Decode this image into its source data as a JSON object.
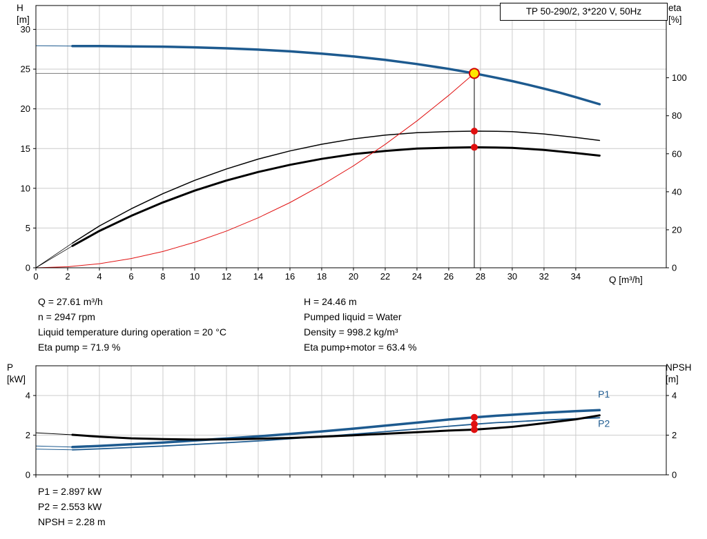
{
  "title_box": {
    "label": "TP 50-290/2, 3*220 V, 50Hz"
  },
  "colors": {
    "curve_blue": "#1d5a8f",
    "curve_black": "#000000",
    "curve_red": "#e01010",
    "duty_point_fill": "#ffe600",
    "duty_point_stroke": "#d00000",
    "grid": "#cccccc",
    "frame": "#000000",
    "ref_line_h": "#787878",
    "ref_line_v": "#000000",
    "label_blue": "#1d5a8f"
  },
  "info_top": {
    "col1": [
      "Q = 27.61 m³/h",
      "n = 2947 rpm",
      "Liquid temperature during operation = 20 °C",
      "Eta pump = 71.9 %"
    ],
    "col2": [
      "H = 24.46 m",
      "Pumped liquid = Water",
      "Density = 998.2 kg/m³",
      "Eta pump+motor = 63.4 %"
    ]
  },
  "info_bottom": [
    "P1 = 2.897 kW",
    "P2 = 2.553 kW",
    "NPSH = 2.28 m"
  ],
  "chart_data": [
    {
      "type": "line",
      "name": "qh-eta-chart",
      "title": "TP 50-290/2, 3*220 V, 50Hz",
      "x_axis": {
        "label": "Q [m³/h]",
        "min": 0,
        "max": 39.7,
        "ticks": [
          0,
          2,
          4,
          6,
          8,
          10,
          12,
          14,
          16,
          18,
          20,
          22,
          24,
          26,
          28,
          30,
          32,
          34
        ]
      },
      "y_left": {
        "label": "H [m]",
        "label_lines": [
          "H",
          "[m]"
        ],
        "min": 0,
        "max": 33,
        "ticks": [
          0,
          5,
          10,
          15,
          20,
          25,
          30
        ]
      },
      "y_right": {
        "label": "eta [%]",
        "label_lines": [
          "eta",
          "[%]"
        ],
        "min": 0,
        "max": 138,
        "ticks": [
          0,
          20,
          40,
          60,
          80,
          100
        ]
      },
      "grid": true,
      "series": [
        {
          "name": "head-curve-lead",
          "color": "blue",
          "width": 1,
          "axis": "left",
          "x": [
            0,
            2.3
          ],
          "y": [
            27.95,
            27.9
          ]
        },
        {
          "name": "head-curve",
          "color": "blue",
          "width": 3.5,
          "axis": "left",
          "x": [
            2.3,
            4,
            6,
            8,
            10,
            12,
            14,
            16,
            18,
            20,
            22,
            24,
            26,
            27.61,
            29,
            30,
            31,
            32,
            33,
            34,
            35.5
          ],
          "y": [
            27.9,
            27.89,
            27.86,
            27.82,
            27.74,
            27.62,
            27.45,
            27.23,
            26.95,
            26.59,
            26.16,
            25.64,
            25.03,
            24.46,
            23.91,
            23.49,
            23.03,
            22.54,
            22.03,
            21.47,
            20.58
          ]
        },
        {
          "name": "eta-pump-lead",
          "color": "black",
          "width": 0.8,
          "axis": "right",
          "x": [
            0,
            2.3
          ],
          "y": [
            0,
            13
          ]
        },
        {
          "name": "eta-pump-curve",
          "color": "black",
          "width": 1.5,
          "axis": "right",
          "x": [
            2.3,
            4,
            6,
            8,
            10,
            12,
            14,
            16,
            18,
            20,
            22,
            24,
            26,
            27.61,
            29,
            30,
            32,
            34,
            35.5
          ],
          "y": [
            13,
            22,
            31,
            39,
            46,
            52,
            57.2,
            61.5,
            65,
            67.8,
            69.8,
            71.1,
            71.7,
            71.9,
            71.8,
            71.6,
            70.4,
            68.6,
            67
          ]
        },
        {
          "name": "eta-pump-motor-lead",
          "color": "black",
          "width": 0.8,
          "axis": "right",
          "x": [
            0,
            2.3
          ],
          "y": [
            0,
            11.5
          ]
        },
        {
          "name": "eta-pump-motor-curve",
          "color": "black",
          "width": 3,
          "axis": "right",
          "x": [
            2.3,
            4,
            6,
            8,
            10,
            12,
            14,
            16,
            18,
            20,
            22,
            24,
            26,
            27.61,
            29,
            30,
            32,
            34,
            35.5
          ],
          "y": [
            11.5,
            19.4,
            27.3,
            34.4,
            40.6,
            45.9,
            50.4,
            54.2,
            57.3,
            59.8,
            61.5,
            62.7,
            63.2,
            63.4,
            63.3,
            63.1,
            62,
            60.4,
            59
          ]
        },
        {
          "name": "system-curve",
          "color": "red",
          "width": 1,
          "axis": "left",
          "x": [
            0,
            2,
            4,
            6,
            8,
            10,
            12,
            14,
            16,
            18,
            20,
            22,
            24,
            26,
            27.61
          ],
          "y": [
            0,
            0.13,
            0.51,
            1.16,
            2.05,
            3.21,
            4.62,
            6.29,
            8.21,
            10.4,
            12.83,
            15.53,
            18.48,
            21.69,
            24.46
          ]
        }
      ],
      "reference_lines": [
        {
          "name": "duty-h-line",
          "orientation": "horizontal",
          "axis": "left",
          "value": 24.46,
          "from": 0,
          "to": 27.61,
          "color": "ref_line_h"
        },
        {
          "name": "duty-v-line",
          "orientation": "vertical",
          "axis": "left",
          "value": 27.61,
          "from": 0,
          "to": 24.46,
          "color": "ref_line_v"
        }
      ],
      "markers": [
        {
          "name": "duty-point-marker",
          "type": "duty",
          "q": 27.61,
          "value": 24.46,
          "axis": "left",
          "r": 7
        },
        {
          "name": "eta-pump-point",
          "type": "dot",
          "q": 27.61,
          "value": 71.9,
          "axis": "right",
          "r": 5
        },
        {
          "name": "eta-pump-motor-point",
          "type": "dot",
          "q": 27.61,
          "value": 63.4,
          "axis": "right",
          "r": 5
        }
      ],
      "operating_point": {
        "Q": "27.61 m³/h",
        "H": "24.46 m",
        "eta_pump": "71.9 %",
        "eta_pump_motor": "63.4 %"
      }
    },
    {
      "type": "line",
      "name": "power-npsh-chart",
      "x_axis": {
        "label": "",
        "min": 0,
        "max": 39.7,
        "ticks": [
          0,
          2,
          4,
          6,
          8,
          10,
          12,
          14,
          16,
          18,
          20,
          22,
          24,
          26,
          28,
          30,
          32,
          34
        ]
      },
      "y_left": {
        "label": "P [kW]",
        "label_lines": [
          "P",
          "[kW]"
        ],
        "min": 0,
        "max": 5.5,
        "ticks": [
          0,
          2,
          4
        ]
      },
      "y_right": {
        "label": "NPSH [m]",
        "label_lines": [
          "NPSH",
          "[m]"
        ],
        "min": 0,
        "max": 5.5,
        "ticks": [
          0,
          2,
          4
        ]
      },
      "grid": true,
      "series": [
        {
          "name": "npsh-curve-lead",
          "color": "black",
          "width": 1,
          "axis": "right",
          "x": [
            0,
            2.3
          ],
          "y": [
            2.12,
            2.02
          ]
        },
        {
          "name": "p1-curve-lead",
          "color": "blue",
          "width": 1,
          "axis": "left",
          "x": [
            0,
            2.3
          ],
          "y": [
            1.45,
            1.4
          ]
        },
        {
          "name": "p2-curve-lead",
          "color": "blue",
          "width": 1,
          "axis": "left",
          "x": [
            0,
            2.3
          ],
          "y": [
            1.3,
            1.26
          ]
        },
        {
          "name": "p1-curve",
          "color": "blue",
          "width": 3.5,
          "axis": "left",
          "x": [
            2.3,
            4,
            6,
            8,
            10,
            12,
            14,
            16,
            18,
            20,
            22,
            24,
            26,
            27.61,
            29,
            30,
            32,
            34,
            35.5
          ],
          "y": [
            1.4,
            1.46,
            1.54,
            1.63,
            1.73,
            1.83,
            1.94,
            2.06,
            2.19,
            2.33,
            2.48,
            2.63,
            2.79,
            2.897,
            2.98,
            3.03,
            3.13,
            3.21,
            3.26
          ]
        },
        {
          "name": "p2-curve",
          "color": "blue",
          "width": 1.8,
          "axis": "left",
          "x": [
            2.3,
            4,
            6,
            8,
            10,
            12,
            14,
            16,
            18,
            20,
            22,
            24,
            26,
            27.61,
            29,
            30,
            32,
            34,
            35.5
          ],
          "y": [
            1.26,
            1.31,
            1.38,
            1.45,
            1.53,
            1.62,
            1.71,
            1.82,
            1.93,
            2.05,
            2.18,
            2.31,
            2.45,
            2.553,
            2.63,
            2.67,
            2.76,
            2.83,
            2.88
          ]
        },
        {
          "name": "npsh-curve",
          "color": "black",
          "width": 3,
          "axis": "right",
          "x": [
            2.3,
            4,
            6,
            8,
            10,
            12,
            14,
            16,
            18,
            20,
            22,
            24,
            26,
            27.61,
            29,
            30,
            32,
            34,
            35.5
          ],
          "y": [
            2.02,
            1.92,
            1.84,
            1.8,
            1.78,
            1.79,
            1.82,
            1.86,
            1.92,
            1.99,
            2.07,
            2.15,
            2.23,
            2.28,
            2.36,
            2.42,
            2.6,
            2.8,
            3.0
          ]
        }
      ],
      "reference_lines": [],
      "markers": [
        {
          "name": "p1-point",
          "type": "dot",
          "q": 27.61,
          "value": 2.897,
          "axis": "left",
          "r": 5
        },
        {
          "name": "p2-point",
          "type": "dot",
          "q": 27.61,
          "value": 2.553,
          "axis": "left",
          "r": 5
        },
        {
          "name": "npsh-point",
          "type": "dot",
          "q": 27.61,
          "value": 2.28,
          "axis": "right",
          "r": 5
        }
      ],
      "point_labels": [
        {
          "text": "P1",
          "q": 35.4,
          "value": 3.9,
          "axis": "left"
        },
        {
          "text": "P2",
          "q": 35.4,
          "value": 2.42,
          "axis": "left"
        }
      ],
      "operating_point": {
        "P1": "2.897 kW",
        "P2": "2.553 kW",
        "NPSH": "2.28 m"
      }
    }
  ]
}
